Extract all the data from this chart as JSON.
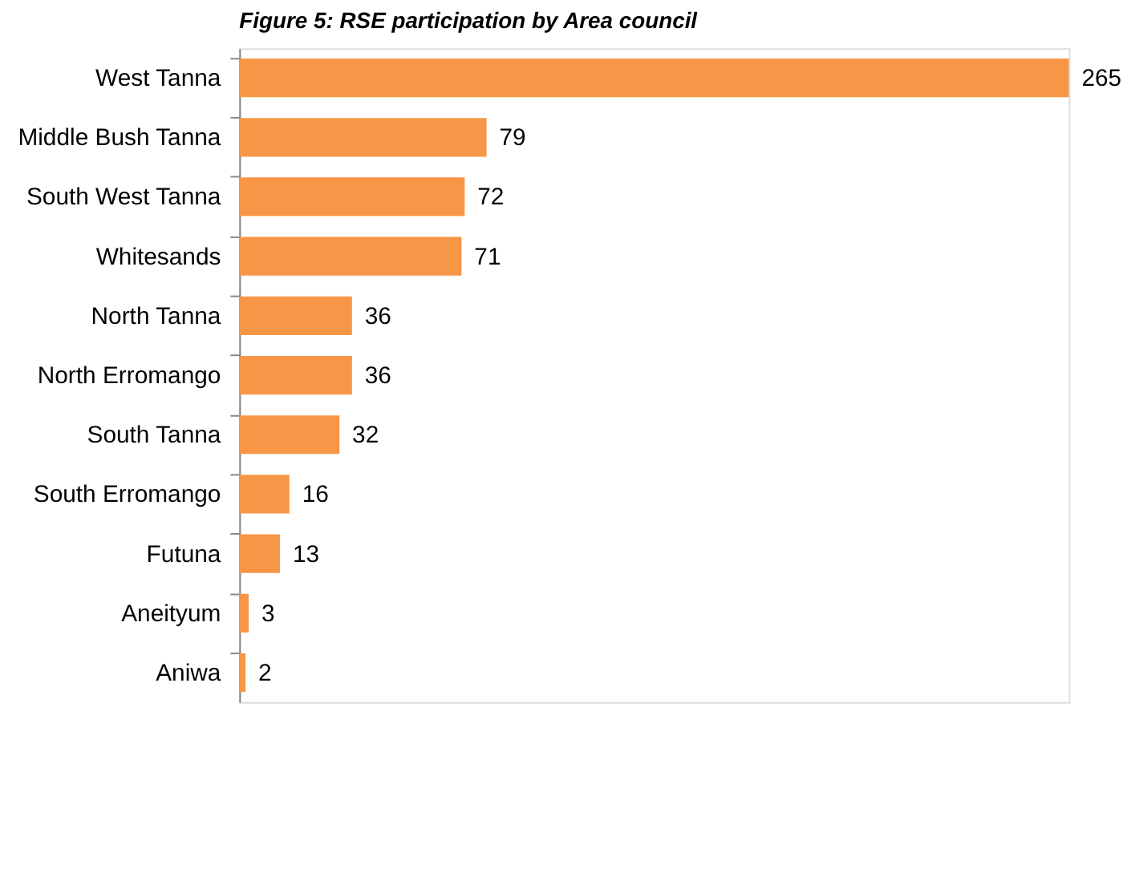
{
  "chart_data": {
    "type": "bar",
    "orientation": "horizontal",
    "title": "Figure 5: RSE participation by Area council",
    "categories": [
      "West Tanna",
      "Middle Bush Tanna",
      "South West Tanna",
      "Whitesands",
      "North Tanna",
      "North Erromango",
      "South Tanna",
      "South Erromango",
      "Futuna",
      "Aneityum",
      "Aniwa"
    ],
    "values": [
      265,
      79,
      72,
      71,
      36,
      36,
      32,
      16,
      13,
      3,
      2
    ],
    "color": "#f79646",
    "data_labels": true,
    "grid": false
  }
}
